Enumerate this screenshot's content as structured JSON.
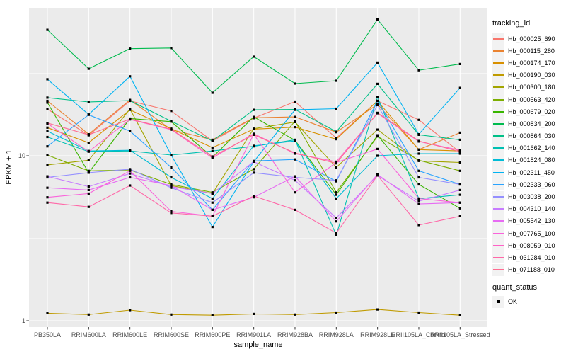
{
  "figure": {
    "background": "#FFFFFF",
    "panel_background": "#EBEBEB",
    "gridline_color": "#FFFFFF",
    "tick_label_color": "#4D4D4D",
    "tick_mark_color": "#333333",
    "axis_title_color": "#000000",
    "legend_key_background": "#F2F2F2"
  },
  "chart_data": {
    "type": "line",
    "title": "",
    "xlabel": "sample_name",
    "ylabel": "FPKM + 1",
    "y_scale": "log10",
    "y_ticks": [
      1,
      10
    ],
    "y_minor_ticks": [
      3.162,
      31.623
    ],
    "ylim": [
      0.92,
      79
    ],
    "grid": true,
    "legend_position": "right",
    "point_shape": "square",
    "point_color": "#000000",
    "categories": [
      "PB350LA",
      "RRIM600LA",
      "RRIM600LE",
      "RRIM600SE",
      "RRIM600PE",
      "RRIM901LA",
      "RRIM928BA",
      "RRIM928LA",
      "RRIM928LE",
      "RRII105LA_Control",
      "RRII105LA_Stressed"
    ],
    "series": [
      {
        "name": "Hb_000025_690",
        "color": "#F8766D",
        "values": [
          19.2,
          13.3,
          21.5,
          18.7,
          12.3,
          16.9,
          21.3,
          12.8,
          21.5,
          16.5,
          10.5
        ]
      },
      {
        "name": "Hb_000115_280",
        "color": "#EA8331",
        "values": [
          21.5,
          13.5,
          21.8,
          14.4,
          12.5,
          17.0,
          17.2,
          13.9,
          20.5,
          10.9,
          13.8
        ]
      },
      {
        "name": "Hb_000174_170",
        "color": "#D89000",
        "values": [
          14.8,
          12.0,
          19.0,
          14.6,
          11.2,
          14.5,
          14.9,
          12.6,
          21.5,
          10.9,
          10.7
        ]
      },
      {
        "name": "Hb_000190_030",
        "color": "#C09B00",
        "values": [
          1.11,
          1.09,
          1.16,
          1.09,
          1.08,
          1.1,
          1.09,
          1.12,
          1.17,
          1.12,
          1.08
        ]
      },
      {
        "name": "Hb_000300_180",
        "color": "#A3A500",
        "values": [
          8.8,
          9.4,
          19.2,
          6.6,
          5.9,
          14.6,
          16.0,
          8.5,
          14.4,
          9.3,
          9.1
        ]
      },
      {
        "name": "Hb_000563_420",
        "color": "#7CAE00",
        "values": [
          10.1,
          8.1,
          8.2,
          6.7,
          6.0,
          8.3,
          16.2,
          6.0,
          13.1,
          9.4,
          8.1
        ]
      },
      {
        "name": "Hb_000679_020",
        "color": "#39B600",
        "values": [
          21.0,
          7.9,
          16.8,
          16.1,
          9.8,
          17.2,
          12.4,
          5.8,
          13.3,
          6.7,
          4.8
        ]
      },
      {
        "name": "Hb_000834_200",
        "color": "#00BB4E",
        "values": [
          58,
          33.7,
          44.6,
          45,
          24.1,
          39.9,
          27.4,
          28.5,
          67,
          33,
          36
        ]
      },
      {
        "name": "Hb_000864_030",
        "color": "#00C087",
        "values": [
          22.5,
          21.2,
          21.6,
          16.2,
          12.3,
          19.0,
          19.1,
          14.0,
          27.3,
          13.4,
          12.5
        ]
      },
      {
        "name": "Hb_001662_140",
        "color": "#00C0B2",
        "values": [
          13.0,
          10.6,
          10.7,
          10.1,
          10.7,
          11.4,
          12.5,
          3.3,
          22.7,
          5.5,
          5.8
        ]
      },
      {
        "name": "Hb_001824_080",
        "color": "#00BCD6",
        "values": [
          14.1,
          10.7,
          10.8,
          7.4,
          5.5,
          11.5,
          12.3,
          5.5,
          10.0,
          10.3,
          10.3
        ]
      },
      {
        "name": "Hb_002311_450",
        "color": "#00B3F2",
        "values": [
          29.1,
          17.8,
          30.3,
          10.1,
          3.7,
          9.2,
          19.0,
          19.3,
          36.7,
          13.5,
          25.8
        ]
      },
      {
        "name": "Hb_002333_060",
        "color": "#29A3FF",
        "values": [
          11.4,
          17.7,
          14.1,
          8.5,
          4.7,
          9.3,
          9.5,
          7.0,
          21.5,
          8.1,
          6.7
        ]
      },
      {
        "name": "Hb_003038_200",
        "color": "#9590FF",
        "values": [
          7.4,
          7.9,
          8.3,
          6.4,
          5.2,
          7.9,
          7.4,
          7.1,
          20.3,
          7.4,
          6.7
        ]
      },
      {
        "name": "Hb_004310_140",
        "color": "#C77CFF",
        "values": [
          7.5,
          6.5,
          7.8,
          6.5,
          5.9,
          9.2,
          7.1,
          4.2,
          7.6,
          5.3,
          6.2
        ]
      },
      {
        "name": "Hb_005542_130",
        "color": "#E76BF3",
        "values": [
          6.4,
          6.2,
          7.4,
          6.6,
          4.7,
          5.6,
          7.5,
          4.0,
          7.7,
          5.1,
          5.2
        ]
      },
      {
        "name": "Hb_007765_100",
        "color": "#FA62DB",
        "values": [
          5.6,
          5.9,
          8.1,
          4.6,
          4.3,
          13.5,
          6.0,
          9.1,
          11.0,
          5.5,
          5.2
        ]
      },
      {
        "name": "Hb_008059_010",
        "color": "#FF61C7",
        "values": [
          15.7,
          10.6,
          16.6,
          14.4,
          9.7,
          13.6,
          10.3,
          9.2,
          18.1,
          12.2,
          10.8
        ]
      },
      {
        "name": "Hb_031284_010",
        "color": "#FF68A8",
        "values": [
          5.2,
          4.9,
          6.6,
          4.5,
          4.3,
          5.7,
          4.7,
          3.4,
          7.6,
          3.8,
          4.3
        ]
      },
      {
        "name": "Hb_071188_010",
        "color": "#FF6C91",
        "values": [
          15.8,
          13.4,
          16.7,
          14.5,
          9.9,
          13.4,
          10.4,
          9.0,
          18.2,
          12.3,
          10.6
        ]
      }
    ]
  },
  "legend": {
    "tracking_title": "tracking_id",
    "quant_title": "quant_status",
    "quant_items": [
      {
        "label": "OK"
      }
    ]
  }
}
